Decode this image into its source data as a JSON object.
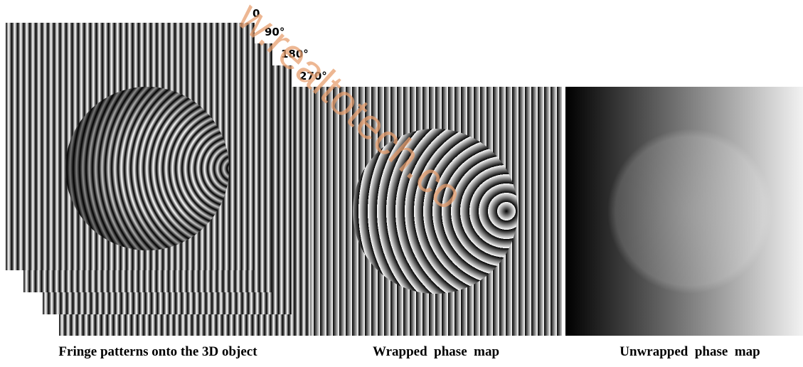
{
  "phases": [
    "0",
    "90°",
    "180°",
    "270°"
  ],
  "captions": {
    "fringe": "Fringe patterns onto the 3D object",
    "wrapped": "Wrapped  phase  map",
    "unwrapped": "Unwrapped  phase  map"
  },
  "watermark": "w.realtotech.co"
}
